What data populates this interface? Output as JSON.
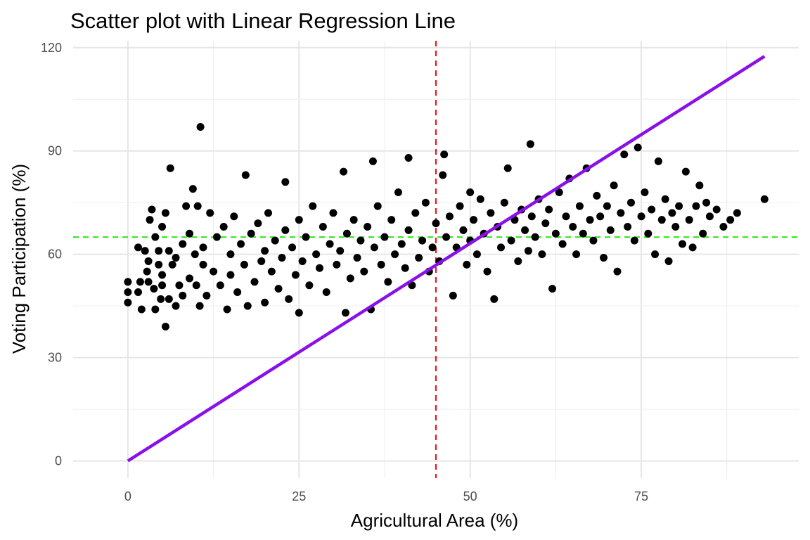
{
  "chart_data": {
    "type": "scatter",
    "title": "Scatter plot with Linear Regression Line",
    "xlabel": "Agricultural Area (%)",
    "ylabel": "Voting Participation (%)",
    "xlim": [
      -8,
      98
    ],
    "ylim": [
      -5,
      122
    ],
    "x_ticks": [
      0,
      25,
      50,
      75
    ],
    "x_tick_labels": [
      "0",
      "25",
      "50",
      "75"
    ],
    "y_ticks": [
      0,
      30,
      60,
      90,
      120
    ],
    "y_tick_labels": [
      "0",
      "30",
      "60",
      "90",
      "120"
    ],
    "grid": true,
    "legend": "none",
    "points": [
      [
        0,
        46
      ],
      [
        0,
        49
      ],
      [
        0,
        52
      ],
      [
        1.5,
        62
      ],
      [
        1.5,
        49
      ],
      [
        1.8,
        52
      ],
      [
        2,
        44
      ],
      [
        2.5,
        61
      ],
      [
        2.8,
        55
      ],
      [
        3,
        52
      ],
      [
        3,
        58
      ],
      [
        3.2,
        70
      ],
      [
        3.5,
        73
      ],
      [
        3.8,
        50
      ],
      [
        4,
        44
      ],
      [
        4,
        65
      ],
      [
        4.5,
        57
      ],
      [
        4.5,
        61
      ],
      [
        4.8,
        47
      ],
      [
        5,
        51
      ],
      [
        5,
        54
      ],
      [
        5,
        68
      ],
      [
        5.5,
        39
      ],
      [
        5.5,
        72
      ],
      [
        6,
        61
      ],
      [
        6,
        47
      ],
      [
        6.2,
        85
      ],
      [
        6.5,
        57
      ],
      [
        7,
        45
      ],
      [
        7,
        59
      ],
      [
        7.5,
        51
      ],
      [
        8,
        63
      ],
      [
        8,
        48
      ],
      [
        8.5,
        74
      ],
      [
        9,
        53
      ],
      [
        9,
        66
      ],
      [
        9.5,
        79
      ],
      [
        9.8,
        60
      ],
      [
        10,
        51
      ],
      [
        10.2,
        74
      ],
      [
        10.5,
        45
      ],
      [
        10.6,
        97
      ],
      [
        11,
        57
      ],
      [
        11,
        62
      ],
      [
        11.5,
        48
      ],
      [
        12,
        72
      ],
      [
        12.5,
        55
      ],
      [
        13,
        65
      ],
      [
        13.5,
        51
      ],
      [
        14,
        68
      ],
      [
        14.5,
        44
      ],
      [
        15,
        60
      ],
      [
        15,
        54
      ],
      [
        15.5,
        71
      ],
      [
        16,
        49
      ],
      [
        16.5,
        63
      ],
      [
        17,
        57
      ],
      [
        17.2,
        83
      ],
      [
        17.5,
        45
      ],
      [
        18,
        66
      ],
      [
        18.5,
        52
      ],
      [
        19,
        69
      ],
      [
        19.5,
        58
      ],
      [
        20,
        61
      ],
      [
        20,
        46
      ],
      [
        20.5,
        72
      ],
      [
        21,
        55
      ],
      [
        21.5,
        64
      ],
      [
        22,
        50
      ],
      [
        22.5,
        59
      ],
      [
        23,
        67
      ],
      [
        23,
        81
      ],
      [
        23.5,
        47
      ],
      [
        24,
        62
      ],
      [
        24.5,
        54
      ],
      [
        25,
        70
      ],
      [
        25,
        43
      ],
      [
        25.5,
        58
      ],
      [
        26,
        65
      ],
      [
        26.5,
        51
      ],
      [
        27,
        74
      ],
      [
        27.5,
        60
      ],
      [
        28,
        56
      ],
      [
        28.5,
        68
      ],
      [
        29,
        49
      ],
      [
        29.5,
        63
      ],
      [
        30,
        72
      ],
      [
        30.5,
        57
      ],
      [
        31,
        61
      ],
      [
        31.5,
        84
      ],
      [
        31.8,
        43
      ],
      [
        32,
        66
      ],
      [
        32.5,
        53
      ],
      [
        33,
        70
      ],
      [
        33.5,
        59
      ],
      [
        34,
        64
      ],
      [
        34.5,
        55
      ],
      [
        35,
        68
      ],
      [
        35.5,
        44
      ],
      [
        35.8,
        87
      ],
      [
        36,
        62
      ],
      [
        36.5,
        74
      ],
      [
        37,
        57
      ],
      [
        37.5,
        65
      ],
      [
        38,
        52
      ],
      [
        38.5,
        70
      ],
      [
        39,
        60
      ],
      [
        39.5,
        78
      ],
      [
        40,
        63
      ],
      [
        40.5,
        56
      ],
      [
        41,
        88
      ],
      [
        41,
        67
      ],
      [
        41.5,
        51
      ],
      [
        42,
        72
      ],
      [
        42.5,
        59
      ],
      [
        43,
        64
      ],
      [
        43.5,
        75
      ],
      [
        44,
        55
      ],
      [
        44.5,
        62
      ],
      [
        45,
        69
      ],
      [
        45.5,
        58
      ],
      [
        46,
        83
      ],
      [
        46.2,
        89
      ],
      [
        46.5,
        65
      ],
      [
        47,
        71
      ],
      [
        47.5,
        48
      ],
      [
        48,
        62
      ],
      [
        48.5,
        74
      ],
      [
        49,
        67
      ],
      [
        49.5,
        57
      ],
      [
        50,
        78
      ],
      [
        50,
        64
      ],
      [
        50.5,
        70
      ],
      [
        51,
        60
      ],
      [
        51.5,
        76
      ],
      [
        52,
        66
      ],
      [
        52.5,
        55
      ],
      [
        53,
        72
      ],
      [
        53.5,
        47
      ],
      [
        54,
        68
      ],
      [
        54.5,
        62
      ],
      [
        55,
        75
      ],
      [
        55.5,
        85
      ],
      [
        56,
        64
      ],
      [
        56.5,
        70
      ],
      [
        57,
        58
      ],
      [
        57.5,
        73
      ],
      [
        58,
        67
      ],
      [
        58.5,
        61
      ],
      [
        58.8,
        92
      ],
      [
        59,
        71
      ],
      [
        59.5,
        65
      ],
      [
        60,
        76
      ],
      [
        60.5,
        60
      ],
      [
        61,
        69
      ],
      [
        61.5,
        73
      ],
      [
        62,
        50
      ],
      [
        62.5,
        66
      ],
      [
        63,
        78
      ],
      [
        63.5,
        63
      ],
      [
        64,
        71
      ],
      [
        64.5,
        82
      ],
      [
        65,
        68
      ],
      [
        65.5,
        60
      ],
      [
        66,
        74
      ],
      [
        66.5,
        66
      ],
      [
        67,
        85
      ],
      [
        67.5,
        70
      ],
      [
        68,
        64
      ],
      [
        68.5,
        77
      ],
      [
        69,
        71
      ],
      [
        69.5,
        59
      ],
      [
        70,
        74
      ],
      [
        70.5,
        67
      ],
      [
        71,
        80
      ],
      [
        71.5,
        55
      ],
      [
        72,
        72
      ],
      [
        72.5,
        89
      ],
      [
        73,
        68
      ],
      [
        73.5,
        75
      ],
      [
        74,
        64
      ],
      [
        74.5,
        91
      ],
      [
        75,
        71
      ],
      [
        75.5,
        78
      ],
      [
        76,
        66
      ],
      [
        76.5,
        73
      ],
      [
        77,
        60
      ],
      [
        77.5,
        87
      ],
      [
        78,
        70
      ],
      [
        78.5,
        76
      ],
      [
        79,
        58
      ],
      [
        79.5,
        72
      ],
      [
        80,
        68
      ],
      [
        80.5,
        74
      ],
      [
        81,
        63
      ],
      [
        81.5,
        84
      ],
      [
        82,
        70
      ],
      [
        82.5,
        62
      ],
      [
        83,
        74
      ],
      [
        83.5,
        80
      ],
      [
        84,
        66
      ],
      [
        84.5,
        75
      ],
      [
        85,
        71
      ],
      [
        86,
        73
      ],
      [
        87,
        68
      ],
      [
        88,
        70
      ],
      [
        89,
        72
      ],
      [
        93,
        76
      ]
    ],
    "regression_line": {
      "x": [
        0,
        93
      ],
      "y": [
        0,
        117.5
      ],
      "color": "#8a10e8"
    },
    "reference_lines": {
      "vertical_x": 45,
      "vertical_color": "#e8151c",
      "horizontal_y": 65,
      "horizontal_color": "#2ee81a"
    },
    "point_color": "#000000"
  }
}
